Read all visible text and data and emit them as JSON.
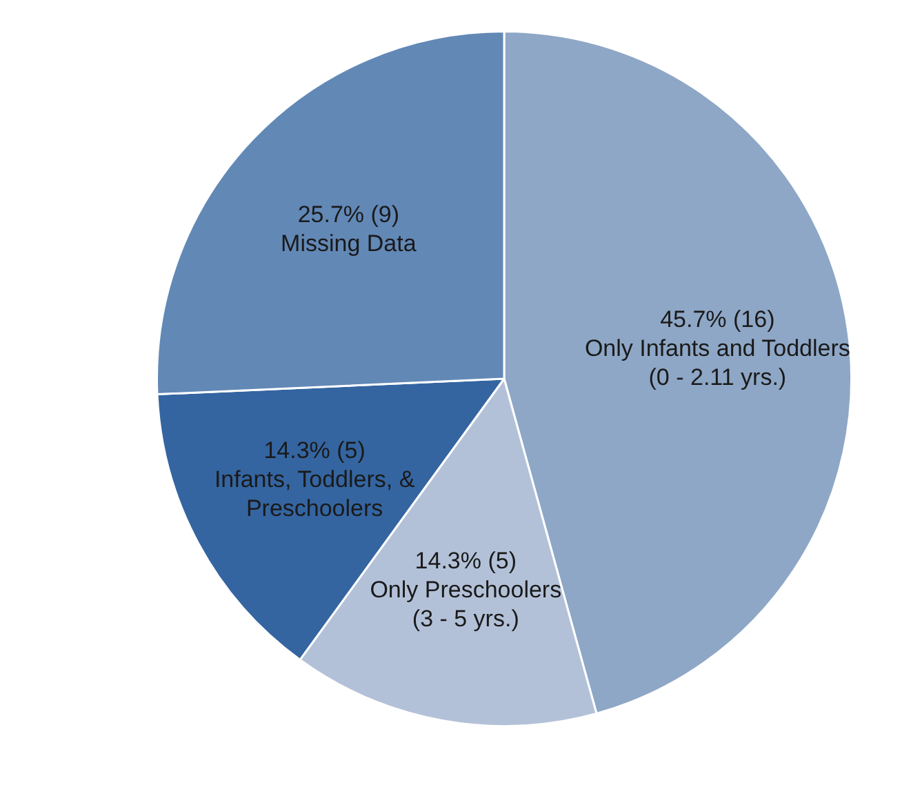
{
  "chart_data": {
    "type": "pie",
    "categories": [
      "Only Infants and Toddlers (0 - 2.11 yrs.)",
      "Only Preschoolers (3 - 5 yrs.)",
      "Infants, Toddlers, & Preschoolers",
      "Missing Data"
    ],
    "values": [
      16,
      5,
      5,
      9
    ],
    "value_labels": [
      "45.7% (16)",
      "14.3% (5)",
      "14.3% (5)",
      "25.7% (9)"
    ],
    "colors": [
      "#8ea7c6",
      "#b3c1d8",
      "#3465a1",
      "#6288b6"
    ]
  }
}
